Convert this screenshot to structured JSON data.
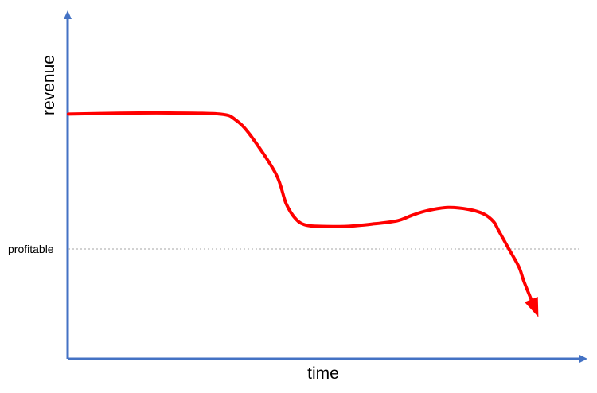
{
  "chart_data": {
    "type": "line",
    "title": "",
    "xlabel": "time",
    "ylabel": "revenue",
    "xlim": [
      0,
      100
    ],
    "ylim": [
      0,
      100
    ],
    "grid": false,
    "reference_line": {
      "label": "profitable",
      "y": 40
    },
    "series": [
      {
        "color": "#ff0000",
        "end_marker": "arrow",
        "x": [
          0,
          10,
          20,
          30,
          33,
          36,
          41,
          43,
          45,
          47,
          50,
          55,
          60,
          65,
          68,
          71,
          75,
          79,
          82,
          84,
          85,
          87,
          89,
          90,
          92
        ],
        "y": [
          99.5,
          99.9,
          100,
          99.5,
          97,
          90,
          73,
          60,
          53,
          50.5,
          50,
          50,
          51,
          52.5,
          55,
          57,
          58.3,
          57.5,
          55.5,
          52,
          48,
          40,
          32,
          25.5,
          14.5
        ]
      }
    ],
    "axis_color": "#4472c4",
    "reference_color": "#a6a6a6"
  }
}
